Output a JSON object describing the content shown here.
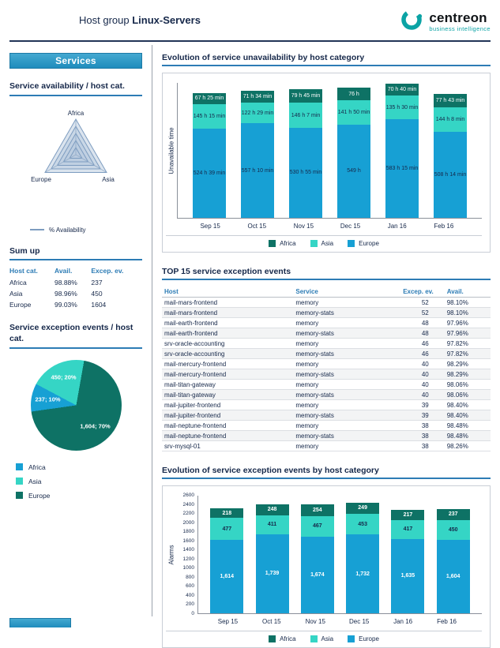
{
  "header": {
    "title_prefix": "Host group",
    "title_bold": "Linux-Servers",
    "logo_name": "centreon",
    "logo_subtitle": "business intelligence"
  },
  "colors": {
    "africa_bar": "#0e7265",
    "asia_bar": "#35d5c5",
    "europe_bar": "#17a0d4",
    "accent_blue": "#2d7cb5",
    "navy": "#16284a",
    "banner_blue": "#2e9ac6",
    "logo_teal": "#0ba3a5"
  },
  "sidebar": {
    "banner": "Services",
    "availability_heading": "Service availability / host cat.",
    "availability_legend": "% Availability",
    "sumup": {
      "title": "Sum up",
      "columns": [
        "Host cat.",
        "Avail.",
        "Excep. ev."
      ],
      "rows": [
        {
          "cat": "Africa",
          "avail": "98.88%",
          "ev": "237"
        },
        {
          "cat": "Asia",
          "avail": "98.96%",
          "ev": "450"
        },
        {
          "cat": "Europe",
          "avail": "99.03%",
          "ev": "1604"
        }
      ]
    },
    "pie_heading": "Service exception events / host cat."
  },
  "main": {
    "table": {
      "title": "TOP 15 service exception events",
      "columns": [
        "Host",
        "Service",
        "Excep. ev.",
        "Avail."
      ],
      "rows": [
        [
          "mail-mars-frontend",
          "memory",
          "52",
          "98.10%"
        ],
        [
          "mail-mars-frontend",
          "memory-stats",
          "52",
          "98.10%"
        ],
        [
          "mail-earth-frontend",
          "memory",
          "48",
          "97.96%"
        ],
        [
          "mail-earth-frontend",
          "memory-stats",
          "48",
          "97.96%"
        ],
        [
          "srv-oracle-accounting",
          "memory",
          "46",
          "97.82%"
        ],
        [
          "srv-oracle-accounting",
          "memory-stats",
          "46",
          "97.82%"
        ],
        [
          "mail-mercury-frontend",
          "memory",
          "40",
          "98.29%"
        ],
        [
          "mail-mercury-frontend",
          "memory-stats",
          "40",
          "98.29%"
        ],
        [
          "mail-titan-gateway",
          "memory",
          "40",
          "98.06%"
        ],
        [
          "mail-titan-gateway",
          "memory-stats",
          "40",
          "98.06%"
        ],
        [
          "mail-jupiter-frontend",
          "memory",
          "39",
          "98.40%"
        ],
        [
          "mail-jupiter-frontend",
          "memory-stats",
          "39",
          "98.40%"
        ],
        [
          "mail-neptune-frontend",
          "memory",
          "38",
          "98.48%"
        ],
        [
          "mail-neptune-frontend",
          "memory-stats",
          "38",
          "98.48%"
        ],
        [
          "srv-mysql-01",
          "memory",
          "38",
          "98.26%"
        ]
      ]
    }
  },
  "chart_data": [
    {
      "id": "unavailability",
      "type": "bar",
      "stacked": true,
      "title": "Evolution of service unavailability by host category",
      "ylabel": "Unavailable time",
      "categories": [
        "Sep 15",
        "Oct 15",
        "Nov 15",
        "Dec 15",
        "Jan 16",
        "Feb 16"
      ],
      "unit": "hours",
      "ymax": 800,
      "bold_labels": false,
      "series": [
        {
          "name": "Europe",
          "color": "#17a0d4",
          "label_color": "#16284a",
          "values": [
            524.65,
            557.17,
            530.92,
            549,
            583.25,
            508.23
          ],
          "labels": [
            "524 h 39 min",
            "557 h 10 min",
            "530 h 55 min",
            "549 h",
            "583 h 15 min",
            "508 h 14 min"
          ]
        },
        {
          "name": "Asia",
          "color": "#35d5c5",
          "label_color": "#16284a",
          "values": [
            145.25,
            122.48,
            146.12,
            141.83,
            135.5,
            144.13
          ],
          "labels": [
            "145 h 15 min",
            "122 h 29 min",
            "146 h 7 min",
            "141 h 50 min",
            "135 h 30 min",
            "144 h 8 min"
          ]
        },
        {
          "name": "Africa",
          "color": "#0e7265",
          "label_color": "#ffffff",
          "values": [
            67.42,
            71.57,
            79.75,
            76,
            70.67,
            77.72
          ],
          "labels": [
            "67 h 25 min",
            "71 h 34 min",
            "79 h 45 min",
            "76 h",
            "70 h 40 min",
            "77 h 43 min"
          ]
        }
      ],
      "legend_order": [
        "Africa",
        "Asia",
        "Europe"
      ]
    },
    {
      "id": "exceptions",
      "type": "bar",
      "stacked": true,
      "title": "Evolution of service exception events by host category",
      "ylabel": "Alarms",
      "categories": [
        "Sep 15",
        "Oct 15",
        "Nov 15",
        "Dec 15",
        "Jan 16",
        "Feb 16"
      ],
      "ymax": 2600,
      "ytick_step": 200,
      "bold_labels": true,
      "series": [
        {
          "name": "Europe",
          "color": "#17a0d4",
          "label_color": "#ffffff",
          "values": [
            1614,
            1739,
            1674,
            1732,
            1635,
            1604
          ],
          "labels": [
            "1,614",
            "1,739",
            "1,674",
            "1,732",
            "1,635",
            "1,604"
          ]
        },
        {
          "name": "Asia",
          "color": "#35d5c5",
          "label_color": "#16284a",
          "values": [
            477,
            411,
            467,
            453,
            417,
            450
          ],
          "labels": [
            "477",
            "411",
            "467",
            "453",
            "417",
            "450"
          ]
        },
        {
          "name": "Africa",
          "color": "#0e7265",
          "label_color": "#ffffff",
          "values": [
            218,
            248,
            254,
            249,
            217,
            237
          ],
          "labels": [
            "218",
            "248",
            "254",
            "249",
            "217",
            "237"
          ]
        }
      ],
      "legend_order": [
        "Africa",
        "Asia",
        "Europe"
      ]
    },
    {
      "id": "pie-exceptions",
      "type": "pie",
      "title": "Service exception events / host cat.",
      "slices": [
        {
          "name": "Africa",
          "value": 237,
          "pct": 10,
          "label": "237; 10%",
          "color": "#17a0d4"
        },
        {
          "name": "Asia",
          "value": 450,
          "pct": 20,
          "label": "450; 20%",
          "color": "#35d5c5"
        },
        {
          "name": "Europe",
          "value": 1604,
          "pct": 70,
          "label": "1,604; 70%",
          "color": "#0e7265"
        }
      ]
    },
    {
      "id": "radar-availability",
      "type": "radar",
      "axes": [
        "Africa",
        "Europe",
        "Asia"
      ],
      "series": [
        {
          "name": "% Availability",
          "values": [
            98.88,
            99.03,
            98.96
          ]
        }
      ]
    }
  ]
}
